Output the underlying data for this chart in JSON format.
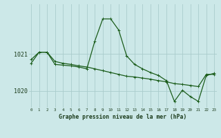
{
  "title": "Graphe pression niveau de la mer (hPa)",
  "background_color": "#cce8e8",
  "grid_color": "#aacccc",
  "line_color_1": "#1a5c1a",
  "line_color_2": "#1a5c1a",
  "x_labels": [
    "0",
    "1",
    "2",
    "3",
    "4",
    "5",
    "6",
    "7",
    "8",
    "9",
    "10",
    "11",
    "12",
    "13",
    "14",
    "15",
    "16",
    "17",
    "18",
    "19",
    "20",
    "21",
    "22",
    "23"
  ],
  "series1": [
    1020.85,
    1021.05,
    1021.05,
    1020.8,
    1020.75,
    1020.72,
    1020.68,
    1020.65,
    1020.6,
    1020.55,
    1020.5,
    1020.45,
    1020.4,
    1020.38,
    1020.35,
    1020.32,
    1020.28,
    1020.25,
    1020.2,
    1020.18,
    1020.15,
    1020.12,
    1020.45,
    1020.45
  ],
  "series2": [
    1020.75,
    1021.05,
    1021.05,
    1020.72,
    1020.7,
    1020.68,
    1020.65,
    1020.6,
    1021.35,
    1021.95,
    1021.95,
    1021.65,
    1020.95,
    1020.72,
    1020.6,
    1020.5,
    1020.42,
    1020.28,
    1019.72,
    1020.02,
    1019.85,
    1019.72,
    1020.42,
    1020.48
  ],
  "ylim_min": 1019.55,
  "ylim_max": 1022.35,
  "ytick_positions": [
    1020,
    1021
  ],
  "ytick_labels": [
    "1020",
    "1021"
  ]
}
